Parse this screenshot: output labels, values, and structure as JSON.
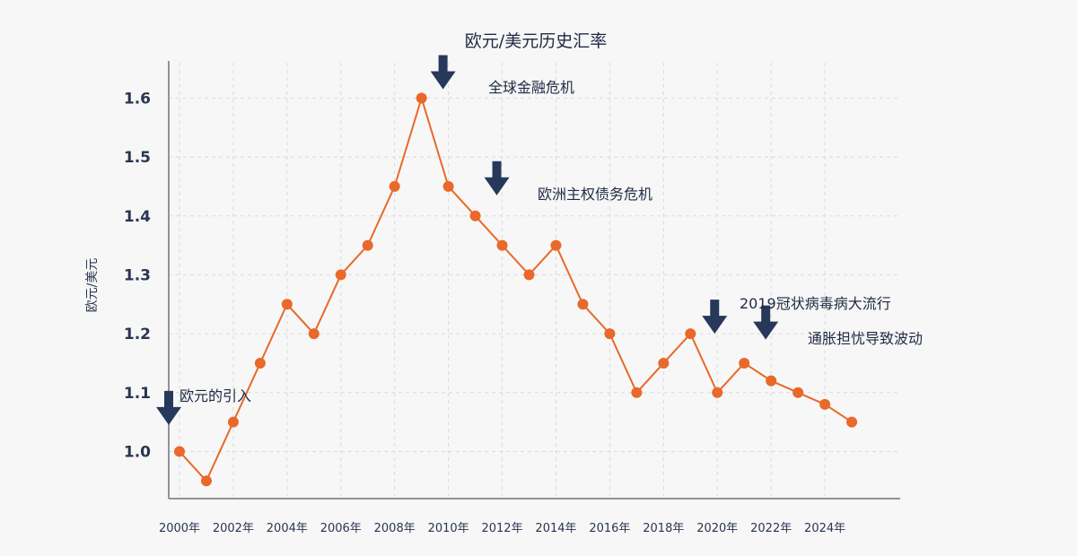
{
  "chart_data": {
    "type": "line",
    "title": "欧元/美元历史汇率",
    "xlabel": "",
    "ylabel": "欧元/美元",
    "xlim": [
      1999.6,
      2026.8
    ],
    "ylim": [
      0.92,
      1.66
    ],
    "yticks": [
      1.0,
      1.1,
      1.2,
      1.3,
      1.4,
      1.5,
      1.6
    ],
    "ytick_labels": [
      "1.0",
      "1.1",
      "1.2",
      "1.3",
      "1.4",
      "1.5",
      "1.6"
    ],
    "xticks": [
      2000,
      2002,
      2004,
      2006,
      2008,
      2010,
      2012,
      2014,
      2016,
      2018,
      2020,
      2022,
      2024
    ],
    "xtick_labels": [
      "2000年",
      "2002年",
      "2004年",
      "2006年",
      "2008年",
      "2010年",
      "2012年",
      "2014年",
      "2016年",
      "2018年",
      "2020年",
      "2022年",
      "2024年"
    ],
    "grid": true,
    "series": [
      {
        "x": [
          2000,
          2001,
          2002,
          2003,
          2004,
          2005,
          2006,
          2007,
          2008,
          2009,
          2010,
          2011,
          2012,
          2013,
          2014,
          2015,
          2016,
          2017,
          2018,
          2019,
          2020,
          2021,
          2022,
          2023,
          2024,
          2025
        ],
        "values": [
          1.0,
          0.95,
          1.05,
          1.15,
          1.25,
          1.2,
          1.3,
          1.35,
          1.45,
          1.6,
          1.45,
          1.4,
          1.35,
          1.3,
          1.35,
          1.25,
          1.2,
          1.1,
          1.15,
          1.2,
          1.1,
          1.15,
          1.12,
          1.1,
          1.08,
          1.05
        ],
        "color": "#e8692a"
      }
    ],
    "annotations": [
      {
        "text": "欧元的引入",
        "arrow_x": 1999.6,
        "arrow_y": 1.045
      },
      {
        "text": "全球金融危机",
        "arrow_x": 2009.8,
        "arrow_y": 1.615
      },
      {
        "text": "欧洲主权债务危机",
        "arrow_x": 2011.8,
        "arrow_y": 1.435
      },
      {
        "text": "2019冠状病毒病大流行",
        "arrow_x": 2019.9,
        "arrow_y": 1.2
      },
      {
        "text": "通胀担忧导致波动",
        "arrow_x": 2021.8,
        "arrow_y": 1.19
      }
    ],
    "colors": {
      "line": "#e8692a",
      "arrow": "#27395a",
      "axis": "#8f9399",
      "grid": "#d9dadd"
    }
  }
}
